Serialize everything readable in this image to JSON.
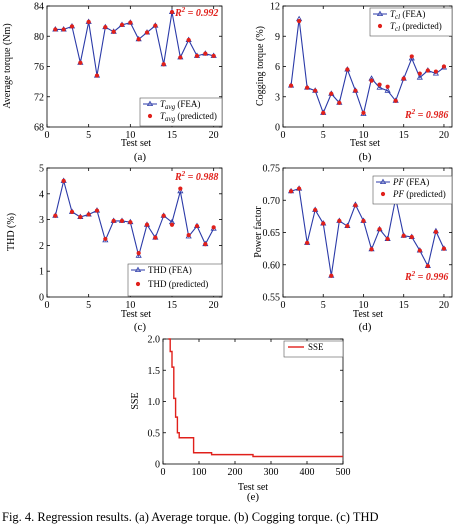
{
  "caption": "Fig. 4.   Regression results. (a) Average torque. (b) Cogging torque. (c) THD",
  "chart_data": [
    {
      "type": "line",
      "panel_label": "(a)",
      "xlabel": "Test set",
      "ylabel": "Average torque (Nm)",
      "xlim": [
        0,
        21
      ],
      "ylim": [
        68,
        84
      ],
      "xticks": [
        "0",
        "5",
        "10",
        "15",
        "20"
      ],
      "yticks": [
        "68",
        "72",
        "76",
        "80",
        "84"
      ],
      "r2_label": "R",
      "r2_sup": "2",
      "r2_value": " = 0.992",
      "legend_position": "center-right",
      "x": [
        1,
        2,
        3,
        4,
        5,
        6,
        7,
        8,
        9,
        10,
        11,
        12,
        13,
        14,
        15,
        16,
        17,
        18,
        19,
        20
      ],
      "series": [
        {
          "name": "Tavg (FEA)",
          "values": [
            80.9,
            80.9,
            81.3,
            76.5,
            81.9,
            74.8,
            81.2,
            80.6,
            81.5,
            81.8,
            79.6,
            80.5,
            81.4,
            76.3,
            83.2,
            77.2,
            79.5,
            77.4,
            77.7,
            77.4
          ]
        },
        {
          "name": "Tavg (predicted)",
          "values": [
            80.9,
            80.9,
            81.3,
            76.5,
            81.9,
            74.8,
            81.2,
            80.6,
            81.5,
            81.8,
            79.6,
            80.5,
            81.4,
            76.3,
            83.2,
            77.2,
            79.5,
            77.4,
            77.7,
            77.4
          ]
        }
      ]
    },
    {
      "type": "line",
      "panel_label": "(b)",
      "xlabel": "Test set",
      "ylabel": "Cogging torque (%)",
      "xlim": [
        0,
        21
      ],
      "ylim": [
        0,
        12
      ],
      "xticks": [
        "0",
        "5",
        "10",
        "15",
        "20"
      ],
      "yticks": [
        "0",
        "3",
        "6",
        "9",
        "12"
      ],
      "r2_label": "R",
      "r2_sup": "2",
      "r2_value": " = 0.986",
      "legend_position": "top-right",
      "x": [
        1,
        2,
        3,
        4,
        5,
        6,
        7,
        8,
        9,
        10,
        11,
        12,
        13,
        14,
        15,
        16,
        17,
        18,
        19,
        20
      ],
      "series": [
        {
          "name": "Tcl (FEA)",
          "values": [
            4.1,
            10.7,
            3.9,
            3.6,
            1.4,
            3.3,
            2.4,
            5.7,
            3.6,
            1.3,
            4.8,
            3.9,
            3.6,
            2.6,
            4.8,
            6.8,
            4.9,
            5.6,
            5.3,
            5.9
          ]
        },
        {
          "name": "Tcl (predicted)",
          "values": [
            4.1,
            10.5,
            3.9,
            3.6,
            1.4,
            3.3,
            2.4,
            5.7,
            3.6,
            1.4,
            4.6,
            4.2,
            4.0,
            2.6,
            4.8,
            7.0,
            5.3,
            5.6,
            5.5,
            6.0
          ]
        }
      ]
    },
    {
      "type": "line",
      "panel_label": "(c)",
      "xlabel": "Test set",
      "ylabel": "THD (%)",
      "xlim": [
        0,
        21
      ],
      "ylim": [
        0,
        5
      ],
      "xticks": [
        "0",
        "5",
        "10",
        "15",
        "20"
      ],
      "yticks": [
        "0",
        "1",
        "2",
        "3",
        "4",
        "5"
      ],
      "r2_label": "R",
      "r2_sup": "2",
      "r2_value": " = 0.988",
      "legend_position": "bottom-right",
      "x": [
        1,
        2,
        3,
        4,
        5,
        6,
        7,
        8,
        9,
        10,
        11,
        12,
        13,
        14,
        15,
        16,
        17,
        18,
        19,
        20
      ],
      "series": [
        {
          "name": "THD (FEA)",
          "values": [
            3.15,
            4.5,
            3.3,
            3.1,
            3.2,
            3.35,
            2.2,
            2.95,
            2.95,
            2.9,
            1.6,
            2.8,
            2.3,
            3.15,
            2.9,
            4.1,
            2.35,
            2.75,
            2.05,
            2.65
          ]
        },
        {
          "name": "THD (predicted)",
          "values": [
            3.15,
            4.5,
            3.3,
            3.1,
            3.2,
            3.35,
            2.25,
            2.95,
            2.95,
            2.9,
            1.7,
            2.8,
            2.3,
            3.15,
            2.8,
            4.2,
            2.4,
            2.75,
            2.05,
            2.7
          ]
        }
      ]
    },
    {
      "type": "line",
      "panel_label": "(d)",
      "xlabel": "Test set",
      "ylabel": "Power factor",
      "xlim": [
        0,
        21
      ],
      "ylim": [
        0.55,
        0.75
      ],
      "xticks": [
        "0",
        "5",
        "10",
        "15",
        "20"
      ],
      "yticks": [
        "0.55",
        "0.60",
        "0.65",
        "0.70",
        "0.75"
      ],
      "r2_label": "R",
      "r2_sup": "2",
      "r2_value": " = 0.996",
      "legend_position": "top-right",
      "x": [
        1,
        2,
        3,
        4,
        5,
        6,
        7,
        8,
        9,
        10,
        11,
        12,
        13,
        14,
        15,
        16,
        17,
        18,
        19,
        20
      ],
      "series": [
        {
          "name": "PF (FEA)",
          "values": [
            0.714,
            0.718,
            0.634,
            0.685,
            0.664,
            0.583,
            0.668,
            0.66,
            0.693,
            0.668,
            0.624,
            0.655,
            0.64,
            0.703,
            0.645,
            0.643,
            0.622,
            0.598,
            0.652,
            0.625
          ]
        },
        {
          "name": "PF (predicted)",
          "values": [
            0.714,
            0.718,
            0.634,
            0.685,
            0.664,
            0.583,
            0.668,
            0.66,
            0.692,
            0.668,
            0.624,
            0.655,
            0.64,
            0.705,
            0.645,
            0.643,
            0.622,
            0.598,
            0.651,
            0.625
          ]
        }
      ]
    },
    {
      "type": "line",
      "panel_label": "(e)",
      "xlabel": "Test set",
      "ylabel": "SSE",
      "xlim": [
        0,
        500
      ],
      "ylim": [
        0,
        2.0
      ],
      "xticks": [
        "0",
        "100",
        "200",
        "300",
        "400",
        "500"
      ],
      "yticks": [
        "0",
        "0.5",
        "1.0",
        "1.5",
        "2.0"
      ],
      "legend_position": "top-right",
      "series": [
        {
          "name": "SSE",
          "step": true,
          "x": [
            15,
            20,
            25,
            30,
            35,
            40,
            45,
            75,
            85,
            135,
            250,
            500
          ],
          "values": [
            2.0,
            1.8,
            1.55,
            1.05,
            0.75,
            0.5,
            0.42,
            0.42,
            0.18,
            0.15,
            0.12,
            0.12
          ]
        }
      ]
    }
  ],
  "legend_labels": [
    {
      "sym": "T",
      "sub": "avg",
      "tail": " (FEA)"
    },
    {
      "sym": "T",
      "sub": "avg",
      "tail": " (predicted)"
    },
    {
      "sym": "T",
      "sub": "cl",
      "tail": " (FEA)"
    },
    {
      "sym": "T",
      "sub": "cl",
      "tail": " (predicted)"
    },
    {
      "sym": "",
      "sub": "",
      "tail": "THD (FEA)"
    },
    {
      "sym": "",
      "sub": "",
      "tail": "THD (predicted)"
    },
    {
      "sym": "PF",
      "sub": "",
      "tail": " (FEA)"
    },
    {
      "sym": "PF",
      "sub": "",
      "tail": " (predicted)"
    },
    {
      "sym": "",
      "sub": "",
      "tail": "SSE"
    }
  ],
  "colors": {
    "fea_line": "#2b3aa8",
    "predicted_marker": "#e0201b",
    "sse_line": "#e0201b",
    "axis": "#000000"
  }
}
